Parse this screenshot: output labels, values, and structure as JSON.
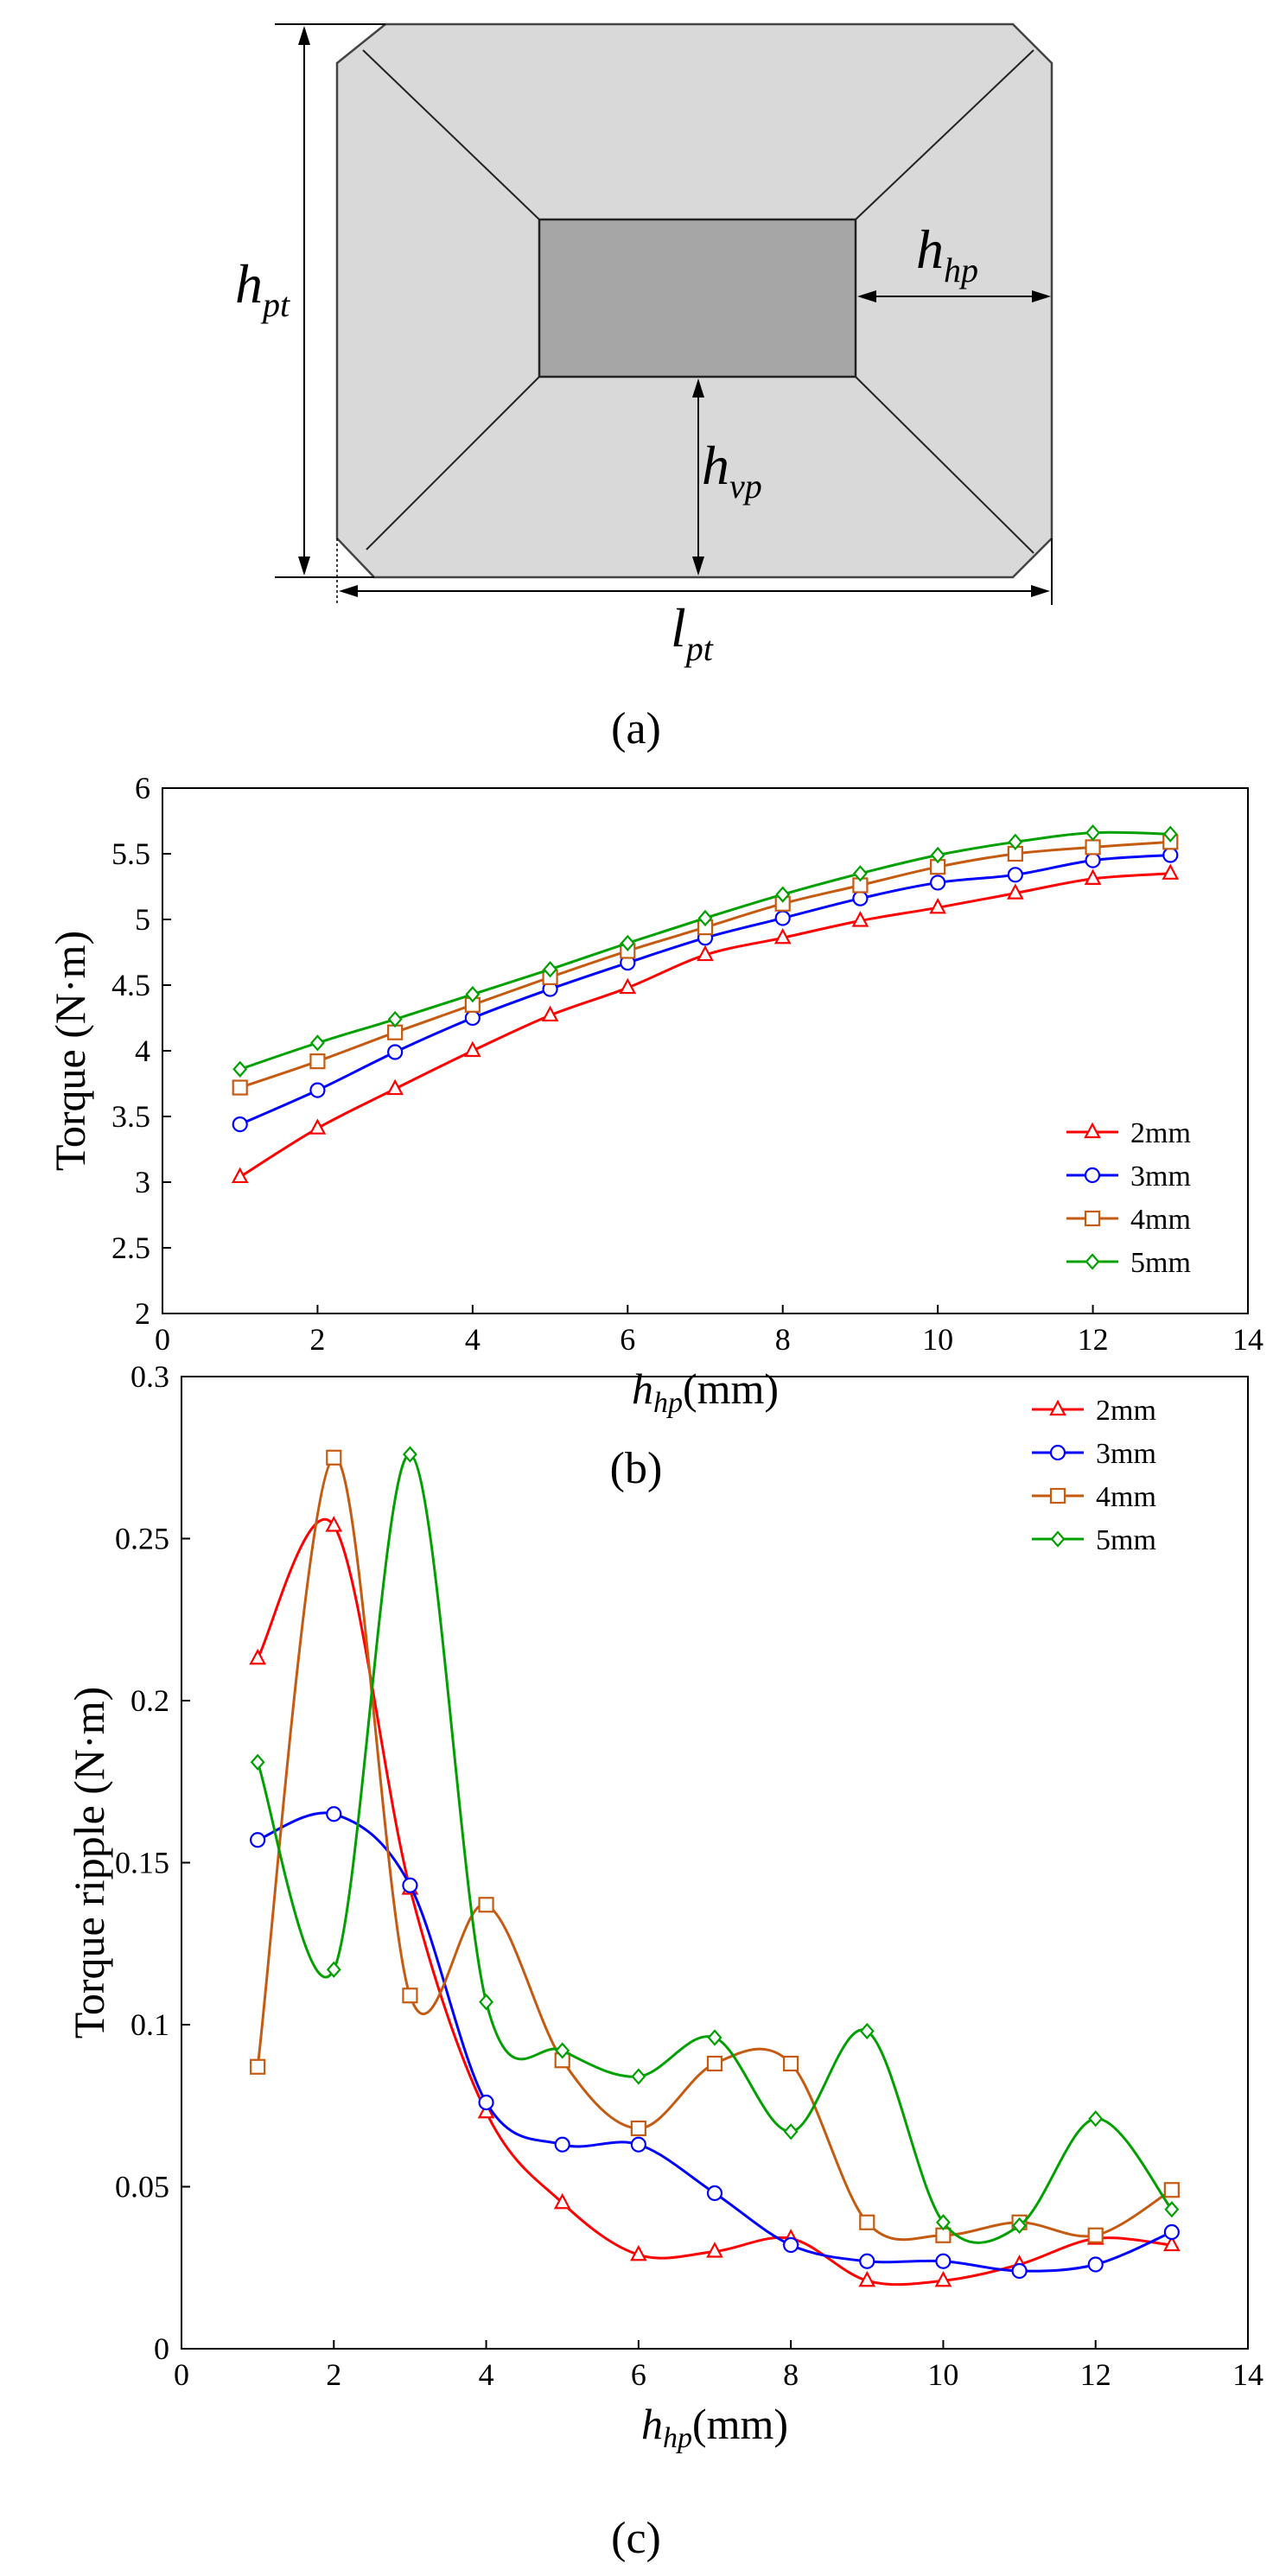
{
  "diagram": {
    "dims": [
      {
        "symbol": "h",
        "sub": "pt"
      },
      {
        "symbol": "h",
        "sub": "hp"
      },
      {
        "symbol": "h",
        "sub": "vp"
      },
      {
        "symbol": "l",
        "sub": "pt"
      }
    ],
    "label_a": "(a)",
    "label_b": "(b)",
    "label_c": "(c)"
  },
  "colors": {
    "2mm": "#ff0000",
    "3mm": "#0000ff",
    "4mm": "#c55a11",
    "5mm": "#00a000",
    "outer_fill": "#d9d9d9",
    "inner_fill": "#a6a6a6"
  },
  "chart_data": [
    {
      "type": "line",
      "title": "",
      "xlabel": {
        "var": "h",
        "sub": "hp",
        "unit": "(mm)"
      },
      "ylabel": "Torque (N·m)",
      "xlim": [
        0,
        14
      ],
      "ylim": [
        2,
        6
      ],
      "xticks": [
        "0",
        "2",
        "4",
        "6",
        "8",
        "10",
        "12",
        "14"
      ],
      "yticks": [
        "2",
        "2.5",
        "3",
        "3.5",
        "4",
        "4.5",
        "5",
        "5.5",
        "6"
      ],
      "x": [
        1,
        2,
        3,
        4,
        5,
        6,
        7,
        8,
        9,
        10,
        11,
        12,
        13
      ],
      "series": [
        {
          "name": "2mm",
          "marker": "triangle",
          "values": [
            3.04,
            3.41,
            3.71,
            4.0,
            4.27,
            4.48,
            4.73,
            4.86,
            4.99,
            5.09,
            5.2,
            5.31,
            5.35
          ]
        },
        {
          "name": "3mm",
          "marker": "circle",
          "values": [
            3.44,
            3.7,
            3.99,
            4.25,
            4.47,
            4.67,
            4.86,
            5.01,
            5.16,
            5.28,
            5.34,
            5.45,
            5.49
          ]
        },
        {
          "name": "4mm",
          "marker": "square",
          "values": [
            3.72,
            3.92,
            4.14,
            4.35,
            4.56,
            4.76,
            4.94,
            5.12,
            5.26,
            5.4,
            5.5,
            5.55,
            5.59
          ]
        },
        {
          "name": "5mm",
          "marker": "diamond",
          "values": [
            3.86,
            4.06,
            4.24,
            4.43,
            4.62,
            4.82,
            5.01,
            5.19,
            5.35,
            5.49,
            5.59,
            5.66,
            5.65
          ]
        }
      ],
      "legend": "bottom-right"
    },
    {
      "type": "line",
      "title": "",
      "xlabel": {
        "var": "h",
        "sub": "hp",
        "unit": "(mm)"
      },
      "ylabel": "Torque ripple (N·m)",
      "xlim": [
        0,
        14
      ],
      "ylim": [
        0,
        0.3
      ],
      "xticks": [
        "0",
        "2",
        "4",
        "6",
        "8",
        "10",
        "12",
        "14"
      ],
      "yticks": [
        "0",
        "0.05",
        "0.1",
        "0.15",
        "0.2",
        "0.25",
        "0.3"
      ],
      "x": [
        1,
        2,
        3,
        4,
        5,
        6,
        7,
        8,
        9,
        10,
        11,
        12,
        13
      ],
      "series": [
        {
          "name": "2mm",
          "marker": "triangle",
          "values": [
            0.213,
            0.254,
            0.142,
            0.073,
            0.045,
            0.029,
            0.03,
            0.034,
            0.021,
            0.021,
            0.026,
            0.034,
            0.032
          ]
        },
        {
          "name": "3mm",
          "marker": "circle",
          "values": [
            0.157,
            0.165,
            0.143,
            0.076,
            0.063,
            0.063,
            0.048,
            0.032,
            0.027,
            0.027,
            0.024,
            0.026,
            0.036
          ]
        },
        {
          "name": "4mm",
          "marker": "square",
          "values": [
            0.087,
            0.275,
            0.109,
            0.137,
            0.089,
            0.068,
            0.088,
            0.088,
            0.039,
            0.035,
            0.039,
            0.035,
            0.049
          ]
        },
        {
          "name": "5mm",
          "marker": "diamond",
          "values": [
            0.181,
            0.117,
            0.276,
            0.107,
            0.092,
            0.084,
            0.096,
            0.067,
            0.098,
            0.039,
            0.038,
            0.071,
            0.043
          ]
        }
      ],
      "legend": "top-right"
    }
  ]
}
